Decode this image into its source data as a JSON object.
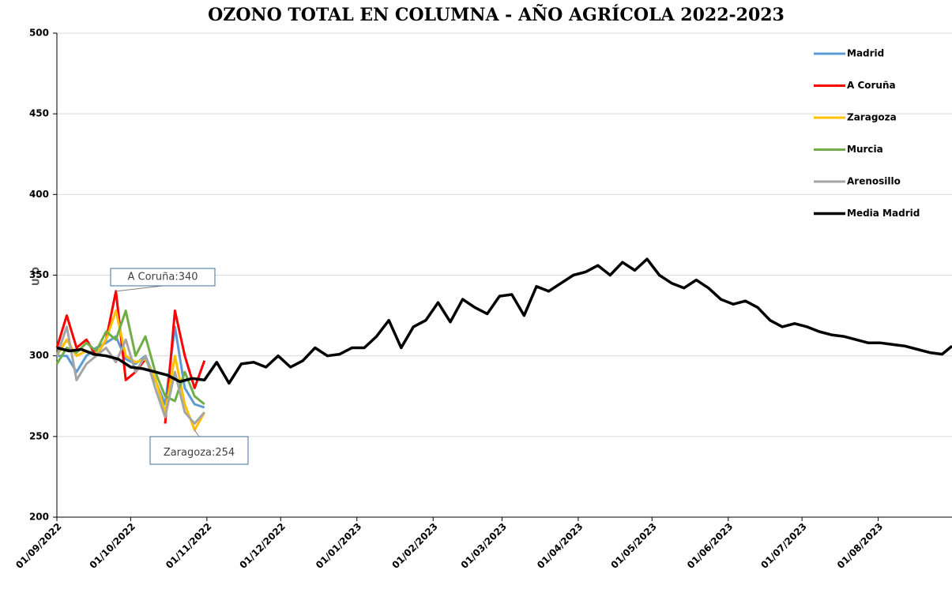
{
  "chart_data": {
    "type": "line",
    "title": "OZONO TOTAL EN COLUMNA - AÑO AGRÍCOLA 2022-2023",
    "y_label": "U.D",
    "xlim": [
      "01/09/2022",
      "31/08/2023"
    ],
    "xticks": [
      "01/09/2022",
      "01/10/2022",
      "01/11/2022",
      "01/12/2022",
      "01/01/2023",
      "01/02/2023",
      "01/03/2023",
      "01/04/2023",
      "01/05/2023",
      "01/06/2023",
      "01/07/2023",
      "01/08/2023"
    ],
    "ylim": [
      200,
      500
    ],
    "yticks": [
      200,
      250,
      300,
      350,
      400,
      450,
      500
    ],
    "grid": true,
    "legend": "top-right",
    "series": [
      {
        "name": "Madrid",
        "color": "#5b9bd5",
        "width": 3,
        "x": [
          "01/09/2022",
          "05/09/2022",
          "09/09/2022",
          "13/09/2022",
          "17/09/2022",
          "21/09/2022",
          "25/09/2022",
          "29/09/2022",
          "03/10/2022",
          "07/10/2022",
          "11/10/2022",
          "15/10/2022",
          "19/10/2022",
          "23/10/2022",
          "27/10/2022",
          "31/10/2022"
        ],
        "values": [
          300,
          300,
          290,
          300,
          305,
          308,
          312,
          298,
          295,
          300,
          285,
          270,
          318,
          280,
          270,
          268
        ]
      },
      {
        "name": "A Coruña",
        "color": "#ff0000",
        "width": 3,
        "x": [
          "01/09/2022",
          "05/09/2022",
          "09/09/2022",
          "13/09/2022",
          "17/09/2022",
          "21/09/2022",
          "25/09/2022",
          "29/09/2022",
          "03/10/2022",
          "07/10/2022",
          "11/10/2022",
          "15/10/2022",
          "19/10/2022",
          "23/10/2022",
          "27/10/2022",
          "31/10/2022"
        ],
        "values": [
          305,
          325,
          305,
          310,
          300,
          310,
          340,
          285,
          290,
          298,
          null,
          258,
          328,
          300,
          280,
          297
        ]
      },
      {
        "name": "Zaragoza",
        "color": "#ffc000",
        "width": 3,
        "x": [
          "01/09/2022",
          "05/09/2022",
          "09/09/2022",
          "13/09/2022",
          "17/09/2022",
          "21/09/2022",
          "25/09/2022",
          "29/09/2022",
          "03/10/2022",
          "07/10/2022",
          "11/10/2022",
          "15/10/2022",
          "19/10/2022",
          "23/10/2022",
          "27/10/2022",
          "31/10/2022"
        ],
        "values": [
          300,
          310,
          300,
          303,
          300,
          310,
          328,
          300,
          296,
          298,
          286,
          265,
          300,
          270,
          254,
          265
        ]
      },
      {
        "name": "Murcia",
        "color": "#70ad47",
        "width": 3,
        "x": [
          "01/09/2022",
          "05/09/2022",
          "09/09/2022",
          "13/09/2022",
          "17/09/2022",
          "21/09/2022",
          "25/09/2022",
          "29/09/2022",
          "03/10/2022",
          "07/10/2022",
          "11/10/2022",
          "15/10/2022",
          "19/10/2022",
          "23/10/2022",
          "27/10/2022",
          "31/10/2022"
        ],
        "values": [
          295,
          305,
          302,
          308,
          303,
          315,
          310,
          328,
          300,
          312,
          290,
          275,
          272,
          290,
          275,
          270
        ]
      },
      {
        "name": "Arenosillo",
        "color": "#a5a5a5",
        "width": 3,
        "x": [
          "01/09/2022",
          "05/09/2022",
          "09/09/2022",
          "13/09/2022",
          "17/09/2022",
          "21/09/2022",
          "25/09/2022",
          "29/09/2022",
          "03/10/2022",
          "07/10/2022",
          "11/10/2022",
          "15/10/2022",
          "19/10/2022",
          "23/10/2022",
          "27/10/2022",
          "31/10/2022"
        ],
        "values": [
          300,
          318,
          285,
          295,
          300,
          305,
          296,
          310,
          290,
          300,
          280,
          262,
          290,
          265,
          258,
          265
        ]
      },
      {
        "name": "Media Madrid",
        "color": "#000000",
        "width": 3.5,
        "x": [
          "01/09/2022",
          "06/09/2022",
          "11/09/2022",
          "16/09/2022",
          "21/09/2022",
          "26/09/2022",
          "01/10/2022",
          "06/10/2022",
          "11/10/2022",
          "16/10/2022",
          "21/10/2022",
          "26/10/2022",
          "31/10/2022",
          "05/11/2022",
          "10/11/2022",
          "15/11/2022",
          "20/11/2022",
          "25/11/2022",
          "30/11/2022",
          "05/12/2022",
          "10/12/2022",
          "15/12/2022",
          "20/12/2022",
          "25/12/2022",
          "30/12/2022",
          "04/01/2023",
          "09/01/2023",
          "14/01/2023",
          "19/01/2023",
          "24/01/2023",
          "29/01/2023",
          "03/02/2023",
          "08/02/2023",
          "13/02/2023",
          "18/02/2023",
          "23/02/2023",
          "28/02/2023",
          "05/03/2023",
          "10/03/2023",
          "15/03/2023",
          "20/03/2023",
          "25/03/2023",
          "30/03/2023",
          "04/04/2023",
          "09/04/2023",
          "14/04/2023",
          "19/04/2023",
          "24/04/2023",
          "29/04/2023",
          "04/05/2023",
          "09/05/2023",
          "14/05/2023",
          "19/05/2023",
          "24/05/2023",
          "29/05/2023",
          "03/06/2023",
          "08/06/2023",
          "13/06/2023",
          "18/06/2023",
          "23/06/2023",
          "28/06/2023",
          "03/07/2023",
          "08/07/2023",
          "13/07/2023",
          "18/07/2023",
          "23/07/2023",
          "28/07/2023",
          "02/08/2023",
          "07/08/2023",
          "12/08/2023",
          "17/08/2023",
          "22/08/2023",
          "27/08/2023",
          "31/08/2023"
        ],
        "values": [
          305,
          303,
          304,
          301,
          300,
          298,
          293,
          292,
          290,
          288,
          284,
          286,
          285,
          296,
          283,
          295,
          296,
          293,
          300,
          293,
          297,
          305,
          300,
          301,
          305,
          305,
          312,
          322,
          305,
          318,
          322,
          333,
          321,
          335,
          330,
          326,
          337,
          338,
          325,
          343,
          340,
          345,
          350,
          352,
          356,
          350,
          358,
          353,
          360,
          350,
          345,
          342,
          347,
          342,
          335,
          332,
          334,
          330,
          322,
          318,
          320,
          318,
          315,
          313,
          312,
          310,
          308,
          308,
          307,
          306,
          304,
          302,
          301,
          306
        ]
      }
    ],
    "annotations": [
      {
        "text": "A Coruña:340",
        "series": 1,
        "point": 6
      },
      {
        "text": "Zaragoza:254",
        "series": 2,
        "point": 14
      }
    ]
  }
}
